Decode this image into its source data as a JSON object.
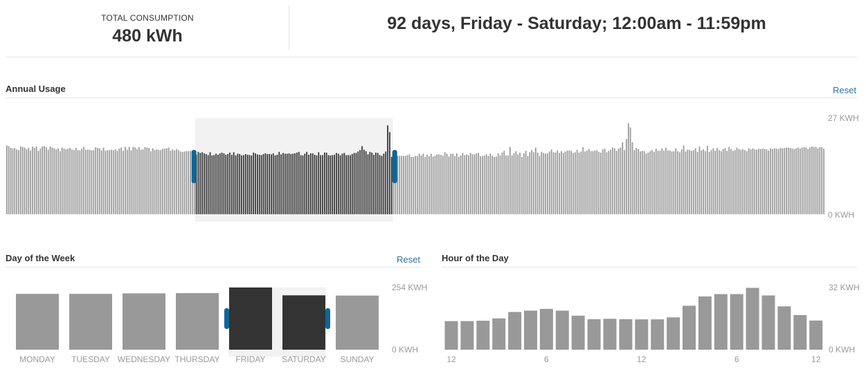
{
  "summary": {
    "total_label": "TOTAL CONSUMPTION",
    "total_value": "480 kWh",
    "date_range": "92 days, Friday - Saturday; 12:00am - 11:59pm"
  },
  "annual": {
    "title": "Annual Usage",
    "reset_label": "Reset",
    "max_label": "27 KWH",
    "min_label": "0 KWH",
    "selection_start_index": 96,
    "selection_end_index": 195,
    "colors": {
      "bar": "#999999",
      "selected_bar": "#333333",
      "selection_bg": "#f2f2f2",
      "handle": "#0d6796"
    }
  },
  "week": {
    "title": "Day of the Week",
    "reset_label": "Reset",
    "max_label": "254 KWH",
    "min_label": "0 KWH",
    "selected_days": [
      "FRIDAY",
      "SATURDAY"
    ]
  },
  "hour": {
    "title": "Hour of the Day",
    "max_label": "32 KWH",
    "min_label": "0 KWH"
  },
  "chart_data": [
    {
      "type": "bar",
      "title": "Annual Usage",
      "ylim": [
        0,
        27
      ],
      "values": [
        19.2,
        19.0,
        18.5,
        18.3,
        18.5,
        18.1,
        17.9,
        18.9,
        18.8,
        18.6,
        18.1,
        18.5,
        17.8,
        18.9,
        18.5,
        18.9,
        17.7,
        18.3,
        18.9,
        19.0,
        18.7,
        18.0,
        18.9,
        18.6,
        18.4,
        18.1,
        18.4,
        17.6,
        18.6,
        18.3,
        18.1,
        18.3,
        18.5,
        18.1,
        17.9,
        18.5,
        17.9,
        17.8,
        18.3,
        18.8,
        18.0,
        18.0,
        18.0,
        17.8,
        17.9,
        18.7,
        18.5,
        18.4,
        17.8,
        18.6,
        17.7,
        17.9,
        17.9,
        18.0,
        17.8,
        18.1,
        17.7,
        18.3,
        18.6,
        17.7,
        18.8,
        18.0,
        18.8,
        17.8,
        18.8,
        18.6,
        18.2,
        18.7,
        18.0,
        18.1,
        18.7,
        18.6,
        18.5,
        17.6,
        18.4,
        17.9,
        18.1,
        17.9,
        17.9,
        18.3,
        18.3,
        18.4,
        18.6,
        17.7,
        18.1,
        17.8,
        18.2,
        17.9,
        17.5,
        17.4,
        17.5,
        17.6,
        17.6,
        17.7,
        17.3,
        17.1,
        16.6,
        17.4,
        17.1,
        17.3,
        17.0,
        16.8,
        16.5,
        17.3,
        16.4,
        16.5,
        16.9,
        16.6,
        17.0,
        17.2,
        17.0,
        16.6,
        16.8,
        17.2,
        16.6,
        17.3,
        16.4,
        16.9,
        16.8,
        16.4,
        16.5,
        16.8,
        16.6,
        16.5,
        16.4,
        17.2,
        17.0,
        16.7,
        16.6,
        16.5,
        16.8,
        17.0,
        16.8,
        16.8,
        16.7,
        17.0,
        16.4,
        16.6,
        17.4,
        16.7,
        17.1,
        16.9,
        16.9,
        17.0,
        16.8,
        16.9,
        17.0,
        17.2,
        17.4,
        16.5,
        16.4,
        16.9,
        17.4,
        16.6,
        17.0,
        17.0,
        16.6,
        16.4,
        17.3,
        16.5,
        16.5,
        17.2,
        17.2,
        16.5,
        16.4,
        16.5,
        16.6,
        17.1,
        16.9,
        16.4,
        16.9,
        17.1,
        16.5,
        16.5,
        16.5,
        16.8,
        17.1,
        17.1,
        17.5,
        17.9,
        19.0,
        18.0,
        17.6,
        16.7,
        17.4,
        17.2,
        16.6,
        17.2,
        17.1,
        16.5,
        16.3,
        16.9,
        17.5,
        24.8,
        22.9,
        16.0,
        16.3,
        16.5,
        16.3,
        16.3,
        16.3,
        16.3,
        16.3,
        16.5,
        16.7,
        16.0,
        16.0,
        16.3,
        16.3,
        16.9,
        16.4,
        16.9,
        16.0,
        16.6,
        16.2,
        16.9,
        16.1,
        16.3,
        16.7,
        16.7,
        16.6,
        16.3,
        17.3,
        16.9,
        16.1,
        16.9,
        16.9,
        16.3,
        17.0,
        16.0,
        16.4,
        17.1,
        16.5,
        16.7,
        16.4,
        17.1,
        16.7,
        16.7,
        17.0,
        17.1,
        16.2,
        16.2,
        16.4,
        16.7,
        16.3,
        16.9,
        16.3,
        16.0,
        16.1,
        17.0,
        16.4,
        17.2,
        17.7,
        16.4,
        16.4,
        18.8,
        16.4,
        17.0,
        17.6,
        16.7,
        17.2,
        16.0,
        17.0,
        17.7,
        16.2,
        17.3,
        17.9,
        17.3,
        18.6,
        17.2,
        16.3,
        17.4,
        17.1,
        16.9,
        17.0,
        17.5,
        18.1,
        17.3,
        17.2,
        17.8,
        17.1,
        17.6,
        17.1,
        17.5,
        17.8,
        17.8,
        17.7,
        17.1,
        17.3,
        18.0,
        17.2,
        17.5,
        18.7,
        17.5,
        17.8,
        18.2,
        17.6,
        17.6,
        17.8,
        17.8,
        17.4,
        17.2,
        18.1,
        18.3,
        17.3,
        17.7,
        18.0,
        18.6,
        18.4,
        17.7,
        18.3,
        18.6,
        20.1,
        17.9,
        21.0,
        25.4,
        24.2,
        20.1,
        17.9,
        18.5,
        18.2,
        17.5,
        17.7,
        17.6,
        16.9,
        17.2,
        17.6,
        17.9,
        17.4,
        18.3,
        17.7,
        17.7,
        18.4,
        17.8,
        18.5,
        17.8,
        17.8,
        17.5,
        17.6,
        18.4,
        17.6,
        17.3,
        18.1,
        19.2,
        17.5,
        18.0,
        18.0,
        17.7,
        17.9,
        18.4,
        17.4,
        18.9,
        17.8,
        18.1,
        17.6,
        19.1,
        17.4,
        17.9,
        18.4,
        17.7,
        18.5,
        17.9,
        17.6,
        18.2,
        18.5,
        17.7,
        18.8,
        18.2,
        17.7,
        17.9,
        18.6,
        18.2,
        18.0,
        18.2,
        17.9,
        17.6,
        18.4,
        18.1,
        18.4,
        18.1,
        18.0,
        18.3,
        18.2,
        18.3,
        18.2,
        18.1,
        17.8,
        18.4,
        18.2,
        18.4,
        18.3,
        18.2,
        18.5,
        18.4,
        18.5,
        18.6,
        18.6,
        18.5,
        18.3,
        18.2,
        18.4,
        18.6,
        18.3,
        18.6,
        18.7,
        18.6,
        18.2,
        18.6,
        18.9,
        18.8,
        18.8,
        18.4,
        18.7,
        18.7,
        18.3
      ]
    },
    {
      "type": "bar",
      "title": "Day of the Week",
      "categories": [
        "MONDAY",
        "TUESDAY",
        "WEDNESDAY",
        "THURSDAY",
        "FRIDAY",
        "SATURDAY",
        "SUNDAY"
      ],
      "values": [
        228,
        228,
        230,
        231,
        254,
        222,
        221
      ],
      "ylim": [
        0,
        254
      ]
    },
    {
      "type": "bar",
      "title": "Hour of the Day",
      "x_tick_labels": [
        "12",
        "6",
        "12",
        "6",
        "12"
      ],
      "x_tick_positions": [
        0,
        6,
        12,
        18,
        23
      ],
      "values": [
        14.7,
        14.7,
        14.9,
        16.1,
        19.4,
        20.1,
        21.0,
        20.1,
        17.5,
        15.7,
        15.9,
        15.7,
        15.6,
        15.6,
        16.6,
        22.6,
        27.4,
        28.6,
        28.6,
        31.8,
        27.9,
        22.3,
        17.8,
        15.0
      ],
      "ylim": [
        0,
        32
      ]
    }
  ]
}
